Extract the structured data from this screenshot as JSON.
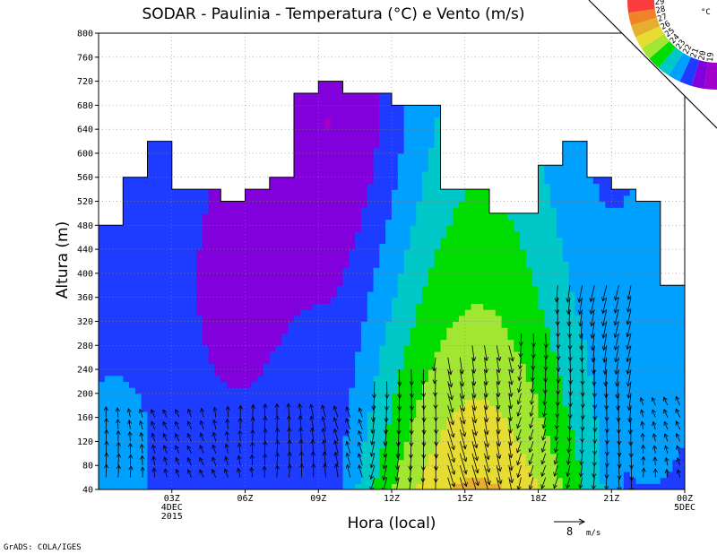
{
  "chart_data": {
    "type": "heatmap",
    "title": "SODAR - Paulinia - Temperatura (°C) e Vento (m/s)",
    "xlabel": "Hora (local)",
    "ylabel": "Altura (m)",
    "ylim": [
      40,
      800
    ],
    "xlim": [
      0,
      24
    ],
    "y_ticks": [
      40,
      80,
      120,
      160,
      200,
      240,
      280,
      320,
      360,
      400,
      440,
      480,
      520,
      560,
      600,
      640,
      680,
      720,
      760,
      800
    ],
    "x_ticks": [
      {
        "x": 3,
        "l1": "03Z",
        "l2": "4DEC",
        "l3": "2015"
      },
      {
        "x": 6,
        "l1": "06Z",
        "l2": "",
        "l3": ""
      },
      {
        "x": 9,
        "l1": "09Z",
        "l2": "",
        "l3": ""
      },
      {
        "x": 12,
        "l1": "12Z",
        "l2": "",
        "l3": ""
      },
      {
        "x": 15,
        "l1": "15Z",
        "l2": "",
        "l3": ""
      },
      {
        "x": 18,
        "l1": "18Z",
        "l2": "",
        "l3": ""
      },
      {
        "x": 21,
        "l1": "21Z",
        "l2": "",
        "l3": ""
      },
      {
        "x": 24,
        "l1": "00Z",
        "l2": "5DEC",
        "l3": ""
      }
    ],
    "grid": true,
    "colorbar": {
      "unit": "°C",
      "placement": "top-right",
      "labels": [
        "19",
        "20",
        "21",
        "22",
        "23",
        "24",
        "25",
        "26",
        "27",
        "28",
        "29"
      ],
      "colors": [
        "#a000c8",
        "#8200dc",
        "#1e3cff",
        "#00a0ff",
        "#00c8c8",
        "#00dc00",
        "#a0e632",
        "#e6dc32",
        "#e6af2d",
        "#f08228",
        "#fa3c3c"
      ]
    },
    "levels": [
      19,
      20,
      21,
      22,
      23,
      24,
      25,
      26,
      27,
      28,
      29
    ],
    "data_top": [
      {
        "x0": 0,
        "x1": 1,
        "top": 480
      },
      {
        "x0": 1,
        "x1": 2,
        "top": 560
      },
      {
        "x0": 2,
        "x1": 3,
        "top": 620
      },
      {
        "x0": 3,
        "x1": 5,
        "top": 540
      },
      {
        "x0": 5,
        "x1": 6,
        "top": 520
      },
      {
        "x0": 6,
        "x1": 7,
        "top": 540
      },
      {
        "x0": 7,
        "x1": 8,
        "top": 560
      },
      {
        "x0": 8,
        "x1": 9,
        "top": 700
      },
      {
        "x0": 9,
        "x1": 10,
        "top": 720
      },
      {
        "x0": 10,
        "x1": 12,
        "top": 700
      },
      {
        "x0": 12,
        "x1": 13,
        "top": 680
      },
      {
        "x0": 13,
        "x1": 14,
        "top": 680
      },
      {
        "x0": 14,
        "x1": 15,
        "top": 540
      },
      {
        "x0": 15,
        "x1": 16,
        "top": 540
      },
      {
        "x0": 16,
        "x1": 17,
        "top": 500
      },
      {
        "x0": 17,
        "x1": 18,
        "top": 500
      },
      {
        "x0": 18,
        "x1": 19,
        "top": 580
      },
      {
        "x0": 19,
        "x1": 20,
        "top": 620
      },
      {
        "x0": 20,
        "x1": 21,
        "top": 560
      },
      {
        "x0": 21,
        "x1": 22,
        "top": 540
      },
      {
        "x0": 22,
        "x1": 23,
        "top": 520
      },
      {
        "x0": 23,
        "x1": 24,
        "top": 380
      }
    ],
    "wind": {
      "label": "8",
      "unit": "m/s",
      "ref_speed": 8
    },
    "credit": "GrADS: COLA/IGES"
  }
}
